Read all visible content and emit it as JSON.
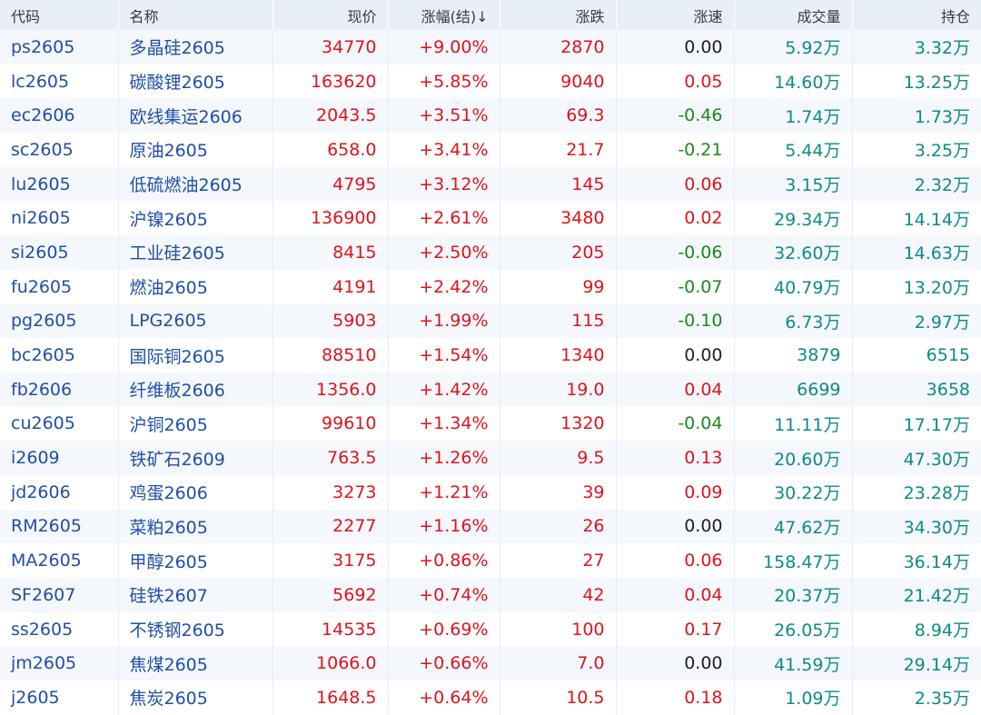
{
  "header": {
    "code": "代码",
    "name": "名称",
    "price": "现价",
    "pct": "涨幅(结)↓",
    "change": "涨跌",
    "speed": "涨速",
    "volume": "成交量",
    "open_interest": "持仓"
  },
  "colors": {
    "up": "#e0131c",
    "down": "#1a8a1a",
    "flat": "#222222",
    "link": "#1f4fa8",
    "volume": "#0d8a8a",
    "header_bg": "#e9eff8",
    "row_alt_bg": "#f4f7fc"
  },
  "rows": [
    {
      "code": "ps2605",
      "name": "多晶硅2605",
      "price": "34770",
      "pct": "+9.00%",
      "change": "2870",
      "speed": "0.00",
      "speed_dir": "flat",
      "volume": "5.92万",
      "open_interest": "3.32万"
    },
    {
      "code": "lc2605",
      "name": "碳酸锂2605",
      "price": "163620",
      "pct": "+5.85%",
      "change": "9040",
      "speed": "0.05",
      "speed_dir": "up",
      "volume": "14.60万",
      "open_interest": "13.25万"
    },
    {
      "code": "ec2606",
      "name": "欧线集运2606",
      "price": "2043.5",
      "pct": "+3.51%",
      "change": "69.3",
      "speed": "-0.46",
      "speed_dir": "down",
      "volume": "1.74万",
      "open_interest": "1.73万"
    },
    {
      "code": "sc2605",
      "name": "原油2605",
      "price": "658.0",
      "pct": "+3.41%",
      "change": "21.7",
      "speed": "-0.21",
      "speed_dir": "down",
      "volume": "5.44万",
      "open_interest": "3.25万"
    },
    {
      "code": "lu2605",
      "name": "低硫燃油2605",
      "price": "4795",
      "pct": "+3.12%",
      "change": "145",
      "speed": "0.06",
      "speed_dir": "up",
      "volume": "3.15万",
      "open_interest": "2.32万"
    },
    {
      "code": "ni2605",
      "name": "沪镍2605",
      "price": "136900",
      "pct": "+2.61%",
      "change": "3480",
      "speed": "0.02",
      "speed_dir": "up",
      "volume": "29.34万",
      "open_interest": "14.14万"
    },
    {
      "code": "si2605",
      "name": "工业硅2605",
      "price": "8415",
      "pct": "+2.50%",
      "change": "205",
      "speed": "-0.06",
      "speed_dir": "down",
      "volume": "32.60万",
      "open_interest": "14.63万"
    },
    {
      "code": "fu2605",
      "name": "燃油2605",
      "price": "4191",
      "pct": "+2.42%",
      "change": "99",
      "speed": "-0.07",
      "speed_dir": "down",
      "volume": "40.79万",
      "open_interest": "13.20万"
    },
    {
      "code": "pg2605",
      "name": "LPG2605",
      "price": "5903",
      "pct": "+1.99%",
      "change": "115",
      "speed": "-0.10",
      "speed_dir": "down",
      "volume": "6.73万",
      "open_interest": "2.97万"
    },
    {
      "code": "bc2605",
      "name": "国际铜2605",
      "price": "88510",
      "pct": "+1.54%",
      "change": "1340",
      "speed": "0.00",
      "speed_dir": "flat",
      "volume": "3879",
      "open_interest": "6515"
    },
    {
      "code": "fb2606",
      "name": "纤维板2606",
      "price": "1356.0",
      "pct": "+1.42%",
      "change": "19.0",
      "speed": "0.04",
      "speed_dir": "up",
      "volume": "6699",
      "open_interest": "3658"
    },
    {
      "code": "cu2605",
      "name": "沪铜2605",
      "price": "99610",
      "pct": "+1.34%",
      "change": "1320",
      "speed": "-0.04",
      "speed_dir": "down",
      "volume": "11.11万",
      "open_interest": "17.17万"
    },
    {
      "code": "i2609",
      "name": "铁矿石2609",
      "price": "763.5",
      "pct": "+1.26%",
      "change": "9.5",
      "speed": "0.13",
      "speed_dir": "up",
      "volume": "20.60万",
      "open_interest": "47.30万"
    },
    {
      "code": "jd2606",
      "name": "鸡蛋2606",
      "price": "3273",
      "pct": "+1.21%",
      "change": "39",
      "speed": "0.09",
      "speed_dir": "up",
      "volume": "30.22万",
      "open_interest": "23.28万"
    },
    {
      "code": "RM2605",
      "name": "菜粕2605",
      "price": "2277",
      "pct": "+1.16%",
      "change": "26",
      "speed": "0.00",
      "speed_dir": "flat",
      "volume": "47.62万",
      "open_interest": "34.30万"
    },
    {
      "code": "MA2605",
      "name": "甲醇2605",
      "price": "3175",
      "pct": "+0.86%",
      "change": "27",
      "speed": "0.06",
      "speed_dir": "up",
      "volume": "158.47万",
      "open_interest": "36.14万"
    },
    {
      "code": "SF2607",
      "name": "硅铁2607",
      "price": "5692",
      "pct": "+0.74%",
      "change": "42",
      "speed": "0.04",
      "speed_dir": "up",
      "volume": "20.37万",
      "open_interest": "21.42万"
    },
    {
      "code": "ss2605",
      "name": "不锈钢2605",
      "price": "14535",
      "pct": "+0.69%",
      "change": "100",
      "speed": "0.17",
      "speed_dir": "up",
      "volume": "26.05万",
      "open_interest": "8.94万"
    },
    {
      "code": "jm2605",
      "name": "焦煤2605",
      "price": "1066.0",
      "pct": "+0.66%",
      "change": "7.0",
      "speed": "0.00",
      "speed_dir": "flat",
      "volume": "41.59万",
      "open_interest": "29.14万"
    },
    {
      "code": "j2605",
      "name": "焦炭2605",
      "price": "1648.5",
      "pct": "+0.64%",
      "change": "10.5",
      "speed": "0.18",
      "speed_dir": "up",
      "volume": "1.09万",
      "open_interest": "2.35万"
    }
  ]
}
